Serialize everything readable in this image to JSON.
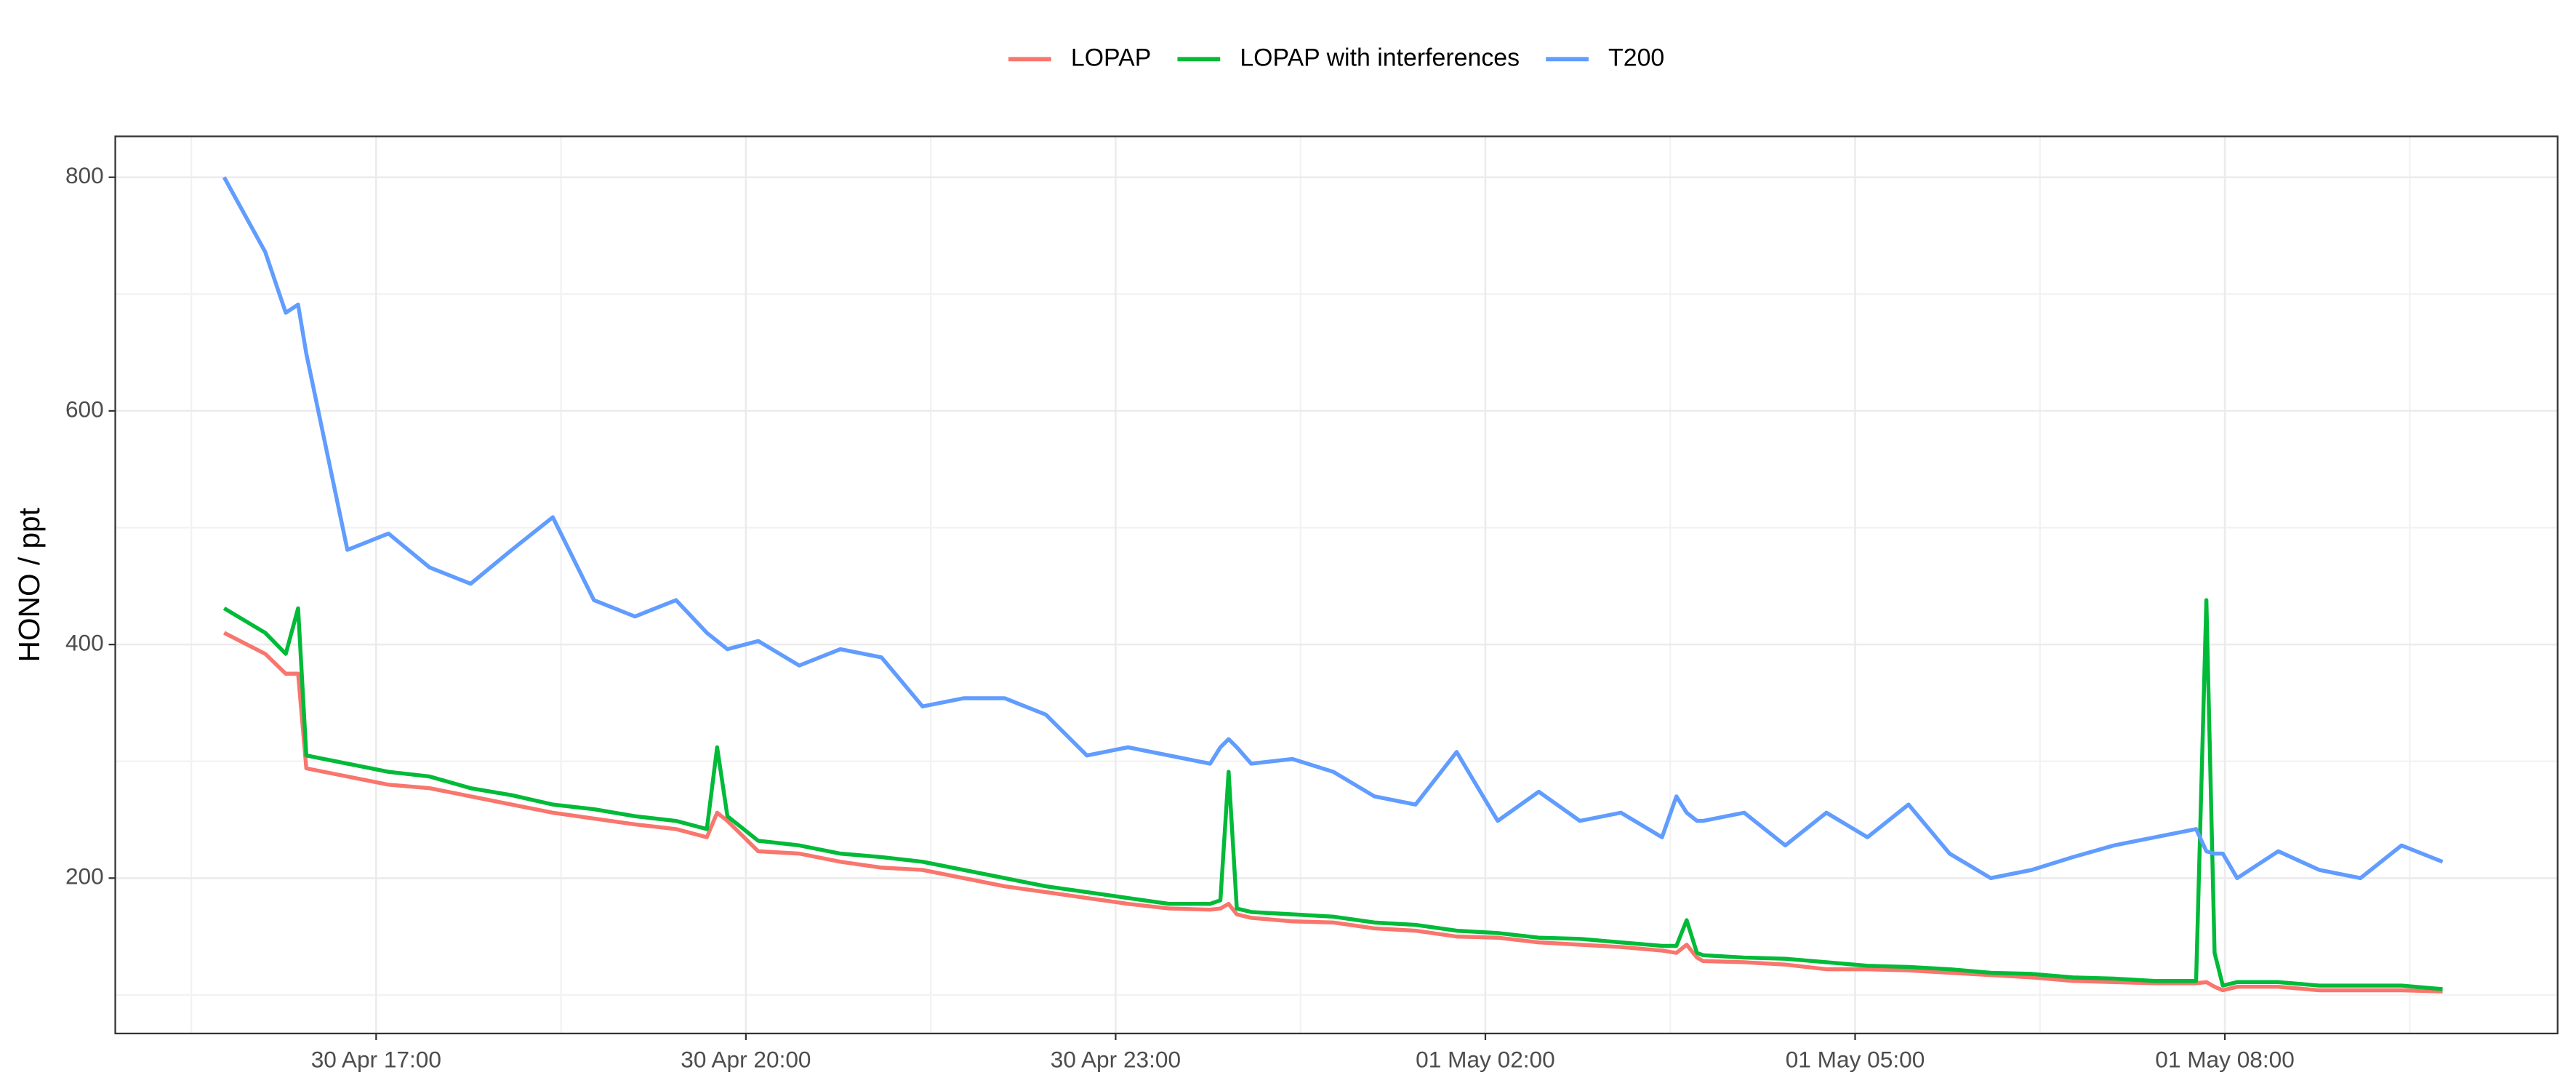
{
  "chart_data": {
    "type": "line",
    "y_label": "HONO / ppt",
    "legend": "top",
    "grid": true,
    "x": [
      "30 Apr 15:46",
      "30 Apr 16:06",
      "30 Apr 16:16",
      "30 Apr 16:22",
      "30 Apr 16:26",
      "30 Apr 16:46",
      "30 Apr 17:06",
      "30 Apr 17:26",
      "30 Apr 17:46",
      "30 Apr 18:06",
      "30 Apr 18:26",
      "30 Apr 18:46",
      "30 Apr 19:06",
      "30 Apr 19:26",
      "30 Apr 19:41",
      "30 Apr 19:46",
      "30 Apr 19:51",
      "30 Apr 20:06",
      "30 Apr 20:26",
      "30 Apr 20:46",
      "30 Apr 21:06",
      "30 Apr 21:26",
      "30 Apr 21:46",
      "30 Apr 22:06",
      "30 Apr 22:26",
      "30 Apr 22:46",
      "30 Apr 23:06",
      "30 Apr 23:26",
      "30 Apr 23:46",
      "30 Apr 23:51",
      "30 Apr 23:55",
      "30 Apr 23:59",
      "01 May 00:06",
      "01 May 00:26",
      "01 May 00:46",
      "01 May 01:06",
      "01 May 01:26",
      "01 May 01:46",
      "01 May 02:06",
      "01 May 02:26",
      "01 May 02:46",
      "01 May 03:06",
      "01 May 03:26",
      "01 May 03:33",
      "01 May 03:38",
      "01 May 03:43",
      "01 May 03:46",
      "01 May 04:06",
      "01 May 04:26",
      "01 May 04:46",
      "01 May 05:06",
      "01 May 05:26",
      "01 May 05:46",
      "01 May 06:06",
      "01 May 06:26",
      "01 May 06:46",
      "01 May 07:06",
      "01 May 07:26",
      "01 May 07:46",
      "01 May 07:51",
      "01 May 07:55",
      "01 May 07:59",
      "01 May 08:06",
      "01 May 08:26",
      "01 May 08:46",
      "01 May 09:06",
      "01 May 09:26",
      "01 May 09:46"
    ],
    "series": [
      {
        "name": "LOPAP",
        "color": "#F8766D",
        "values": [
          410,
          392,
          375,
          375,
          294,
          287,
          280,
          277,
          270,
          263,
          256,
          251,
          246,
          242,
          235,
          256,
          249,
          223,
          221,
          214,
          209,
          207,
          200,
          193,
          188,
          183,
          178,
          174,
          173,
          174,
          178,
          169,
          166,
          163,
          162,
          157,
          155,
          150,
          149,
          145,
          143,
          141,
          138,
          136,
          143,
          132,
          129,
          128,
          126,
          122,
          122,
          121,
          119,
          117,
          115,
          112,
          111,
          110,
          110,
          111,
          107,
          104,
          107,
          107,
          104,
          104,
          104,
          103
        ]
      },
      {
        "name": "LOPAP with interferences",
        "color": "#00BA38",
        "values": [
          431,
          410,
          392,
          431,
          305,
          298,
          291,
          287,
          277,
          271,
          263,
          259,
          253,
          249,
          242,
          312,
          253,
          232,
          228,
          221,
          218,
          214,
          207,
          200,
          193,
          188,
          183,
          178,
          178,
          181,
          291,
          174,
          171,
          169,
          167,
          162,
          160,
          155,
          153,
          149,
          148,
          145,
          142,
          142,
          164,
          136,
          134,
          132,
          131,
          128,
          125,
          124,
          122,
          119,
          118,
          115,
          114,
          112,
          112,
          438,
          136,
          108,
          111,
          111,
          108,
          108,
          108,
          105
        ]
      },
      {
        "name": "T200",
        "color": "#619CFF",
        "values": [
          800,
          736,
          684,
          691,
          649,
          481,
          495,
          466,
          452,
          481,
          509,
          438,
          424,
          438,
          410,
          403,
          396,
          403,
          382,
          396,
          389,
          347,
          354,
          354,
          340,
          305,
          312,
          305,
          298,
          312,
          319,
          312,
          298,
          302,
          291,
          270,
          263,
          308,
          249,
          274,
          249,
          256,
          235,
          270,
          256,
          249,
          249,
          256,
          228,
          256,
          235,
          263,
          221,
          200,
          207,
          218,
          228,
          235,
          242,
          223,
          221,
          221,
          200,
          223,
          207,
          200,
          228,
          214
        ]
      }
    ],
    "xlim": [
      "30 Apr 14:53",
      "01 May 10:42"
    ],
    "xticks": [
      "30 Apr 17:00",
      "30 Apr 20:00",
      "30 Apr 23:00",
      "01 May 02:00",
      "01 May 05:00",
      "01 May 08:00"
    ],
    "ylim": [
      67,
      835
    ],
    "yticks": [
      200,
      400,
      600,
      800
    ]
  }
}
